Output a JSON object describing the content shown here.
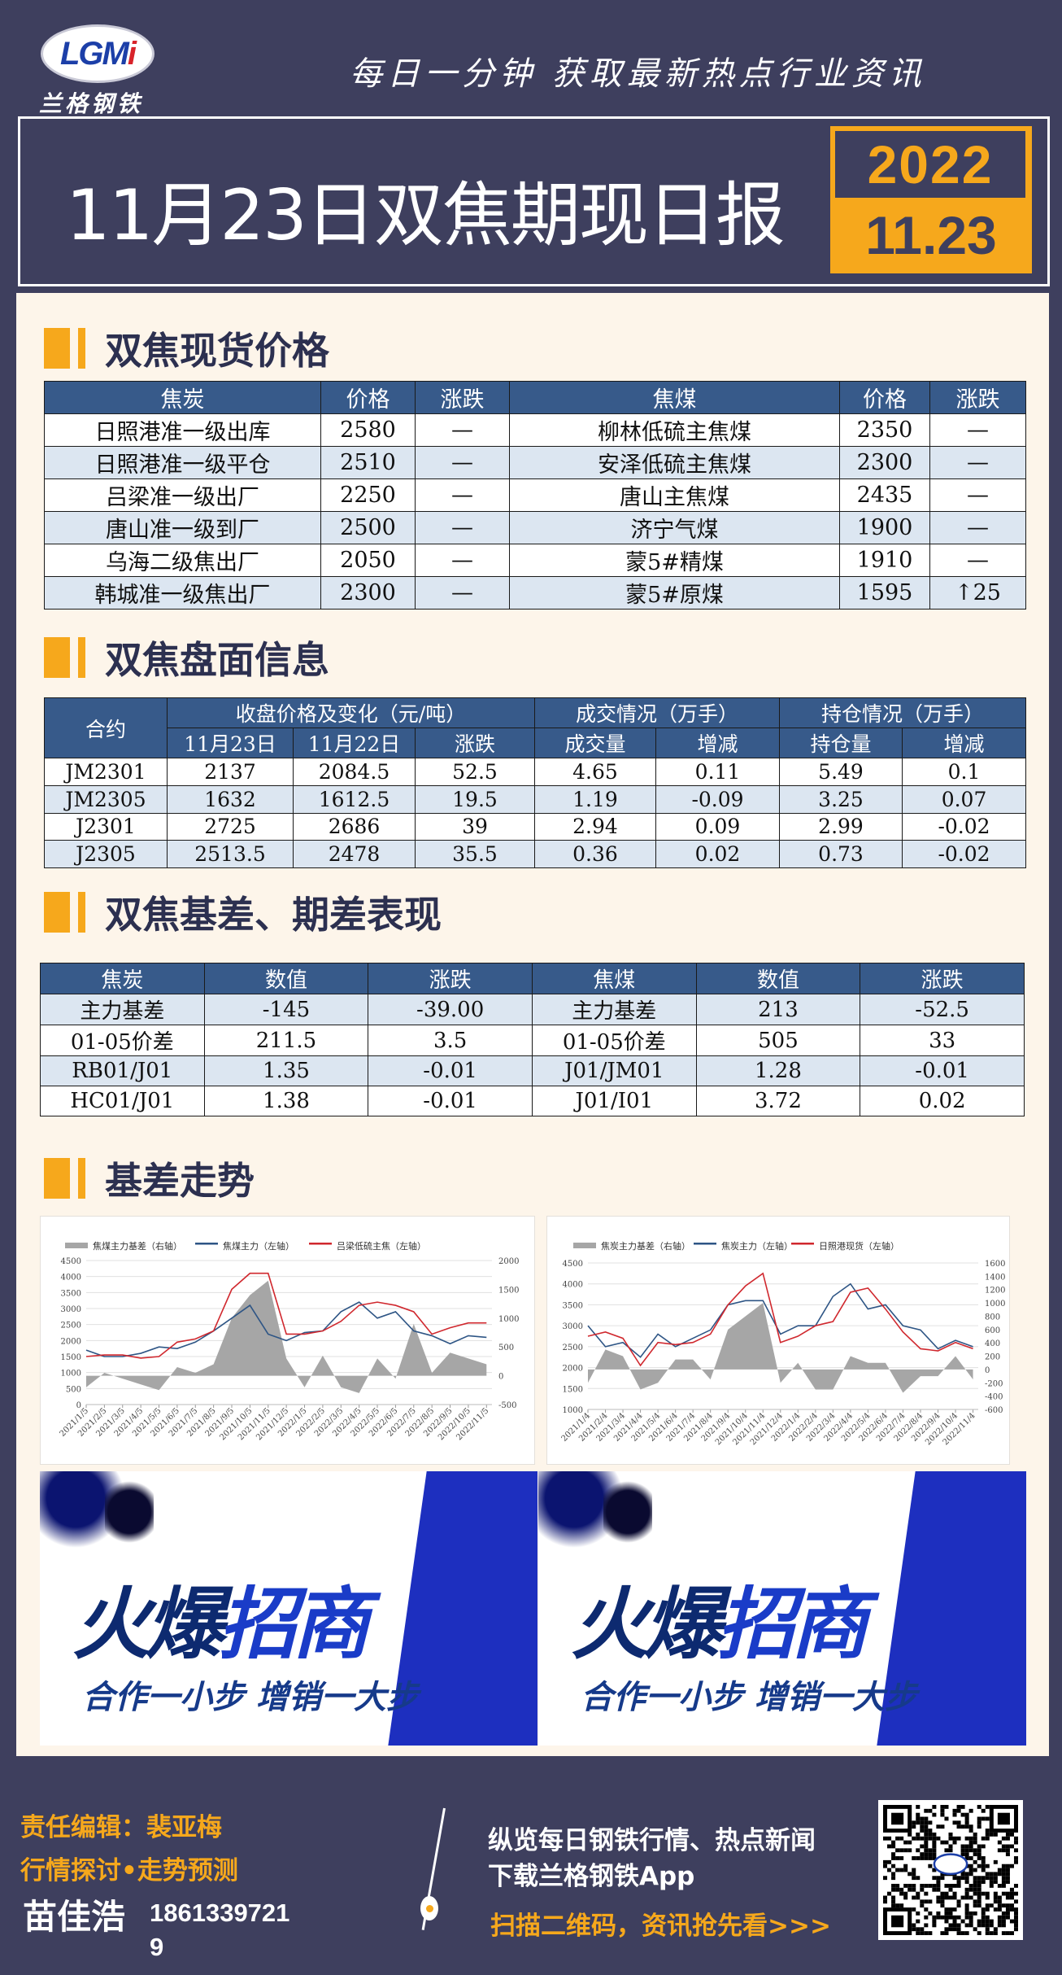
{
  "header": {
    "logo_text": "LGMi",
    "logo_cn": "兰格钢铁",
    "slogan": "每日一分钟  获取最新热点行业资讯",
    "title": "11月23日双焦期现日报",
    "date_year": "2022",
    "date_day": "11.23"
  },
  "colors": {
    "navy": "#3e3f5e",
    "accent": "#f6a81c",
    "table_header": "#375a8a",
    "row_alt": "#dce6f1",
    "panel": "#fdf5ea",
    "series_blue": "#2e5585",
    "series_red": "#d0282e",
    "basis_gray": "#a6a6a6"
  },
  "sections": {
    "spot": "双焦现货价格",
    "futures": "双焦盘面信息",
    "spread": "双焦基差、期差表现",
    "trend": "基差走势"
  },
  "spot_table": {
    "headers": [
      "焦炭",
      "价格",
      "涨跌",
      "焦煤",
      "价格",
      "涨跌"
    ],
    "rows": [
      [
        "日照港准一级出库",
        "2580",
        "—",
        "柳林低硫主焦煤",
        "2350",
        "—"
      ],
      [
        "日照港准一级平仓",
        "2510",
        "—",
        "安泽低硫主焦煤",
        "2300",
        "—"
      ],
      [
        "吕梁准一级出厂",
        "2250",
        "—",
        "唐山主焦煤",
        "2435",
        "—"
      ],
      [
        "唐山准一级到厂",
        "2500",
        "—",
        "济宁气煤",
        "1900",
        "—"
      ],
      [
        "乌海二级焦出厂",
        "2050",
        "—",
        "蒙5#精煤",
        "1910",
        "—"
      ],
      [
        "韩城准一级焦出厂",
        "2300",
        "—",
        "蒙5#原煤",
        "1595",
        "↑25"
      ]
    ]
  },
  "futures_table": {
    "h_contract": "合约",
    "h_close": "收盘价格及变化（元/吨）",
    "h_volume": "成交情况（万手）",
    "h_oi": "持仓情况（万手）",
    "sub": [
      "11月23日",
      "11月22日",
      "涨跌",
      "成交量",
      "增减",
      "持仓量",
      "增减"
    ],
    "rows": [
      [
        "JM2301",
        "2137",
        "2084.5",
        "52.5",
        "4.65",
        "0.11",
        "5.49",
        "0.1"
      ],
      [
        "JM2305",
        "1632",
        "1612.5",
        "19.5",
        "1.19",
        "-0.09",
        "3.25",
        "0.07"
      ],
      [
        "J2301",
        "2725",
        "2686",
        "39",
        "2.94",
        "0.09",
        "2.99",
        "-0.02"
      ],
      [
        "J2305",
        "2513.5",
        "2478",
        "35.5",
        "0.36",
        "0.02",
        "0.73",
        "-0.02"
      ]
    ]
  },
  "spread_table": {
    "headers": [
      "焦炭",
      "数值",
      "涨跌",
      "焦煤",
      "数值",
      "涨跌"
    ],
    "rows": [
      [
        "主力基差",
        "-145",
        "-39.00",
        "主力基差",
        "213",
        "-52.5"
      ],
      [
        "01-05价差",
        "211.5",
        "3.5",
        "01-05价差",
        "505",
        "33"
      ],
      [
        "RB01/J01",
        "1.35",
        "-0.01",
        "J01/JM01",
        "1.28",
        "-0.01"
      ],
      [
        "HC01/J01",
        "1.38",
        "-0.01",
        "J01/I01",
        "3.72",
        "0.02"
      ]
    ]
  },
  "chart_data": [
    {
      "type": "line",
      "legend_position": "top",
      "grid": true,
      "categories": [
        "2021/1/5",
        "2021/2/5",
        "2021/3/5",
        "2021/4/5",
        "2021/5/5",
        "2021/6/5",
        "2021/7/5",
        "2021/8/5",
        "2021/9/5",
        "2021/10/5",
        "2021/11/5",
        "2021/12/5",
        "2022/1/5",
        "2022/2/5",
        "2022/3/5",
        "2022/4/5",
        "2022/5/5",
        "2022/6/5",
        "2022/7/5",
        "2022/8/5",
        "2022/9/5",
        "2022/10/5",
        "2022/11/5"
      ],
      "ylim_left": [
        0,
        4500
      ],
      "yticks_left": [
        0,
        500,
        1000,
        1500,
        2000,
        2500,
        3000,
        3500,
        4000,
        4500
      ],
      "ylim_right": [
        -500,
        2000
      ],
      "yticks_right": [
        -500,
        0,
        500,
        1000,
        1500,
        2000
      ],
      "series": [
        {
          "name": "焦煤主力基差（右轴）",
          "axis": "right",
          "kind": "area",
          "color": "#a6a6a6",
          "values": [
            -200,
            50,
            -50,
            -150,
            -250,
            150,
            50,
            200,
            1000,
            1400,
            1650,
            300,
            -200,
            350,
            -200,
            -300,
            300,
            -50,
            900,
            50,
            400,
            300,
            200
          ]
        },
        {
          "name": "焦煤主力（左轴）",
          "axis": "left",
          "kind": "line",
          "color": "#2e5585",
          "values": [
            1700,
            1500,
            1500,
            1600,
            1800,
            1750,
            1950,
            2300,
            2700,
            3100,
            2200,
            2000,
            2250,
            2300,
            2900,
            3200,
            2700,
            2900,
            2300,
            2150,
            1900,
            2150,
            2100
          ]
        },
        {
          "name": "吕梁低硫主焦（左轴）",
          "axis": "left",
          "kind": "line",
          "color": "#d0282e",
          "values": [
            1500,
            1550,
            1550,
            1450,
            1500,
            1950,
            2050,
            2300,
            3600,
            4100,
            4100,
            2200,
            2200,
            2300,
            2600,
            3100,
            3200,
            3100,
            2900,
            2200,
            2400,
            2550,
            2550
          ]
        }
      ]
    },
    {
      "type": "line",
      "legend_position": "top",
      "grid": true,
      "categories": [
        "2021/1/4",
        "2021/2/4",
        "2021/3/4",
        "2021/4/4",
        "2021/5/4",
        "2021/6/4",
        "2021/7/4",
        "2021/8/4",
        "2021/9/4",
        "2021/10/4",
        "2021/11/4",
        "2021/12/4",
        "2022/1/4",
        "2022/2/4",
        "2022/3/4",
        "2022/4/4",
        "2022/5/4",
        "2022/6/4",
        "2022/7/4",
        "2022/8/4",
        "2022/9/4",
        "2022/10/4",
        "2022/11/4"
      ],
      "ylim_left": [
        1000,
        4500
      ],
      "yticks_left": [
        1000,
        1500,
        2000,
        2500,
        3000,
        3500,
        4000,
        4500
      ],
      "ylim_right": [
        -600,
        1600
      ],
      "yticks_right": [
        -600,
        -400,
        -200,
        0,
        200,
        400,
        600,
        800,
        1000,
        1200,
        1400,
        1600
      ],
      "series": [
        {
          "name": "焦炭主力基差（右轴）",
          "axis": "right",
          "kind": "area",
          "color": "#a6a6a6",
          "values": [
            -200,
            300,
            200,
            -300,
            -200,
            150,
            150,
            -150,
            600,
            800,
            1000,
            -200,
            100,
            -300,
            -300,
            200,
            100,
            100,
            -350,
            -100,
            -100,
            200,
            -150
          ]
        },
        {
          "name": "焦炭主力（左轴）",
          "axis": "left",
          "kind": "line",
          "color": "#2e5585",
          "values": [
            3000,
            2500,
            2600,
            2250,
            2800,
            2500,
            2700,
            2900,
            3500,
            3600,
            3600,
            2800,
            3000,
            3000,
            3700,
            4000,
            3400,
            3500,
            3000,
            2900,
            2450,
            2650,
            2500
          ]
        },
        {
          "name": "日照港现货（左轴）",
          "axis": "left",
          "kind": "line",
          "color": "#d0282e",
          "values": [
            2750,
            2850,
            2700,
            2050,
            2600,
            2550,
            2600,
            2800,
            3500,
            3950,
            4250,
            2600,
            2750,
            3000,
            3100,
            3800,
            3900,
            3400,
            2850,
            2450,
            2400,
            2600,
            2450
          ]
        }
      ]
    }
  ],
  "banners": [
    {
      "main_a": "火爆",
      "main_b": "招商",
      "sub": "合作一小步  增销一大步"
    },
    {
      "main_a": "火爆",
      "main_b": "招商",
      "sub": "合作一小步  增销一大步"
    }
  ],
  "footer": {
    "editor": "责任编辑：裴亚梅",
    "topic": "行情探讨•走势预测",
    "analyst": "苗佳浩",
    "phone": "18613397219",
    "line1": "纵览每日钢铁行情、热点新闻",
    "line2": "下载兰格钢铁App",
    "cta": "扫描二维码，资讯抢先看>>>",
    "qr_label": "QR code"
  }
}
